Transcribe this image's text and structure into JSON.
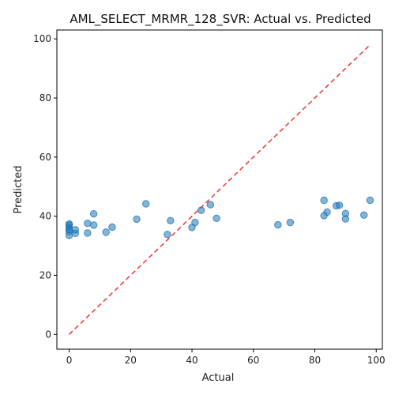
{
  "chart_data": {
    "type": "scatter",
    "title": "AML_SELECT_MRMR_128_SVR: Actual vs. Predicted",
    "xlabel": "Actual",
    "ylabel": "Predicted",
    "xlim": [
      -4,
      102
    ],
    "ylim": [
      -5,
      103
    ],
    "xticks": [
      0,
      20,
      40,
      60,
      80,
      100
    ],
    "yticks": [
      0,
      20,
      40,
      60,
      80,
      100
    ],
    "grid": false,
    "reference_line": {
      "name": "Actual = Predicted",
      "from": [
        0,
        0
      ],
      "to": [
        98,
        98
      ],
      "color": "#e8413c",
      "style": "dashed"
    },
    "point_color": "#1f77b4",
    "points": [
      {
        "x": 0,
        "y": 33.5
      },
      {
        "x": 0,
        "y": 34.8
      },
      {
        "x": 0,
        "y": 35.5
      },
      {
        "x": 0,
        "y": 36.2
      },
      {
        "x": 0,
        "y": 37.0
      },
      {
        "x": 0,
        "y": 37.4
      },
      {
        "x": 2,
        "y": 34.2
      },
      {
        "x": 2,
        "y": 35.4
      },
      {
        "x": 6,
        "y": 34.3
      },
      {
        "x": 6,
        "y": 37.6
      },
      {
        "x": 8,
        "y": 37.0
      },
      {
        "x": 8,
        "y": 40.8
      },
      {
        "x": 12,
        "y": 34.6
      },
      {
        "x": 14,
        "y": 36.3
      },
      {
        "x": 22,
        "y": 39.0
      },
      {
        "x": 25,
        "y": 44.2
      },
      {
        "x": 32,
        "y": 33.8
      },
      {
        "x": 33,
        "y": 38.5
      },
      {
        "x": 40,
        "y": 36.2
      },
      {
        "x": 41,
        "y": 37.9
      },
      {
        "x": 43,
        "y": 42.0
      },
      {
        "x": 46,
        "y": 43.9
      },
      {
        "x": 48,
        "y": 39.3
      },
      {
        "x": 68,
        "y": 37.1
      },
      {
        "x": 72,
        "y": 37.9
      },
      {
        "x": 83,
        "y": 45.4
      },
      {
        "x": 83,
        "y": 40.2
      },
      {
        "x": 84,
        "y": 41.4
      },
      {
        "x": 87,
        "y": 43.5
      },
      {
        "x": 88,
        "y": 43.7
      },
      {
        "x": 90,
        "y": 40.9
      },
      {
        "x": 90,
        "y": 39.1
      },
      {
        "x": 96,
        "y": 40.4
      },
      {
        "x": 98,
        "y": 45.4
      }
    ]
  }
}
